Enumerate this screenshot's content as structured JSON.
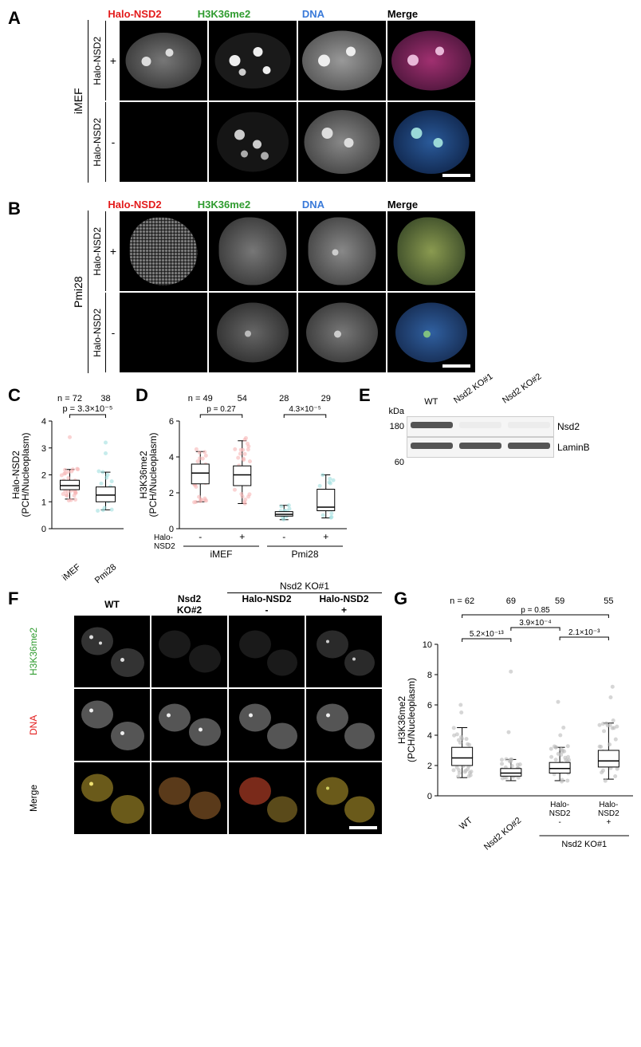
{
  "panelA": {
    "label": "A",
    "cell_line": "iMEF",
    "columns": [
      {
        "label": "Halo-NSD2",
        "color": "#e31b1b"
      },
      {
        "label": "H3K36me2",
        "color": "#2e9b2e"
      },
      {
        "label": "DNA",
        "color": "#3a7ad9"
      },
      {
        "label": "Merge",
        "color": "#000000"
      }
    ],
    "rows": [
      {
        "label": "Halo-NSD2",
        "sign": "+"
      },
      {
        "label": "Halo-NSD2",
        "sign": "-"
      }
    ],
    "nucleus_color_gray": "#a8a8a8",
    "merge_colors": {
      "pos": "#b02f7a",
      "neg": "#2d5db0",
      "dna": "#5a9bd4",
      "speck": "#dcdcdc"
    }
  },
  "panelB": {
    "label": "B",
    "cell_line": "Pmi28",
    "columns": [
      {
        "label": "Halo-NSD2",
        "color": "#e31b1b"
      },
      {
        "label": "H3K36me2",
        "color": "#2e9b2e"
      },
      {
        "label": "DNA",
        "color": "#3a7ad9"
      },
      {
        "label": "Merge",
        "color": "#000000"
      }
    ],
    "rows": [
      {
        "label": "Halo-NSD2",
        "sign": "+"
      },
      {
        "label": "Halo-NSD2",
        "sign": "-"
      }
    ]
  },
  "panelC": {
    "label": "C",
    "ylabel": "Halo-NSD2\n(PCH/Nucleoplasm)",
    "ylim": [
      0,
      4
    ],
    "ytick_step": 1,
    "categories": [
      "iMEF",
      "Pmi28"
    ],
    "n": [
      72,
      38
    ],
    "p": "p = 3.3×10⁻⁵",
    "boxes": [
      {
        "q1": 1.45,
        "med": 1.6,
        "q3": 1.8,
        "lw": 1.1,
        "uw": 2.2,
        "color": "#f7b6b6"
      },
      {
        "q1": 1.0,
        "med": 1.25,
        "q3": 1.55,
        "lw": 0.7,
        "uw": 2.1,
        "color": "#a0e0e0"
      }
    ],
    "outliers": [
      [
        3.4
      ],
      [
        3.2,
        2.8
      ]
    ]
  },
  "panelD": {
    "label": "D",
    "ylabel": "H3K36me2\n(PCH/Nucleoplasm)",
    "ylim": [
      0,
      6
    ],
    "ytick_step": 2,
    "group_labels": [
      "iMEF",
      "Pmi28"
    ],
    "sub_label": "Halo-\nNSD2",
    "sub_values": [
      "-",
      "+",
      "-",
      "+"
    ],
    "n": [
      49,
      54,
      28,
      29
    ],
    "p": [
      "p = 0.27",
      "4.3×10⁻⁵"
    ],
    "boxes": [
      {
        "q1": 2.5,
        "med": 3.1,
        "q3": 3.6,
        "lw": 1.5,
        "uw": 4.3,
        "color": "#f7b6b6"
      },
      {
        "q1": 2.4,
        "med": 3.0,
        "q3": 3.5,
        "lw": 1.4,
        "uw": 4.9,
        "color": "#f7b6b6"
      },
      {
        "q1": 0.7,
        "med": 0.8,
        "q3": 0.95,
        "lw": 0.5,
        "uw": 1.3,
        "color": "#a0e0e0"
      },
      {
        "q1": 1.0,
        "med": 1.2,
        "q3": 2.2,
        "lw": 0.6,
        "uw": 3.0,
        "color": "#a0e0e0"
      }
    ]
  },
  "panelE": {
    "label": "E",
    "kda_label": "kDa",
    "markers": [
      "180",
      "60"
    ],
    "lanes": [
      "WT",
      "Nsd2 KO#1",
      "Nsd2 KO#2"
    ],
    "rows": [
      "Nsd2",
      "LaminB"
    ],
    "bands": {
      "Nsd2": [
        true,
        false,
        false
      ],
      "LaminB": [
        true,
        true,
        true
      ]
    }
  },
  "panelF": {
    "label": "F",
    "col_groups": [
      {
        "top": "WT",
        "sub": null
      },
      {
        "top": "Nsd2\nKO#2",
        "sub": null
      },
      {
        "top": "Halo-NSD2",
        "sub": "-",
        "group": "Nsd2 KO#1"
      },
      {
        "top": "Halo-NSD2",
        "sub": "+",
        "group": "Nsd2 KO#1"
      }
    ],
    "group_header": "Nsd2 KO#1",
    "row_labels": [
      {
        "label": "H3K36me2",
        "color": "#2e9b2e"
      },
      {
        "label": "DNA",
        "color": "#e31b1b"
      },
      {
        "label": "Merge",
        "color": "#000000"
      }
    ]
  },
  "panelG": {
    "label": "G",
    "ylabel": "H3K36me2\n(PCH/Nucleoplasm)",
    "ylim": [
      0,
      10
    ],
    "ytick_step": 2,
    "categories": [
      "WT",
      "Nsd2 KO#2",
      "Halo-\nNSD2\n-",
      "Halo-\nNSD2\n+"
    ],
    "group_label": "Nsd2 KO#1",
    "n": [
      62,
      69,
      59,
      55
    ],
    "p_top": "p = 0.85",
    "p_mid": [
      "5.2×10⁻¹³",
      "3.9×10⁻⁴",
      "2.1×10⁻³"
    ],
    "boxes": [
      {
        "q1": 2.0,
        "med": 2.5,
        "q3": 3.2,
        "lw": 1.2,
        "uw": 4.5,
        "color": "#bbbbbb"
      },
      {
        "q1": 1.3,
        "med": 1.5,
        "q3": 1.8,
        "lw": 1.0,
        "uw": 2.4,
        "color": "#bbbbbb"
      },
      {
        "q1": 1.5,
        "med": 1.8,
        "q3": 2.2,
        "lw": 1.0,
        "uw": 3.2,
        "color": "#bbbbbb"
      },
      {
        "q1": 1.9,
        "med": 2.3,
        "q3": 3.0,
        "lw": 1.1,
        "uw": 4.8,
        "color": "#bbbbbb"
      }
    ],
    "outliers": [
      [
        6.0,
        5.5
      ],
      [
        8.2,
        4.2
      ],
      [
        6.2,
        4.5,
        4.0
      ],
      [
        6.5,
        7.2
      ]
    ]
  }
}
